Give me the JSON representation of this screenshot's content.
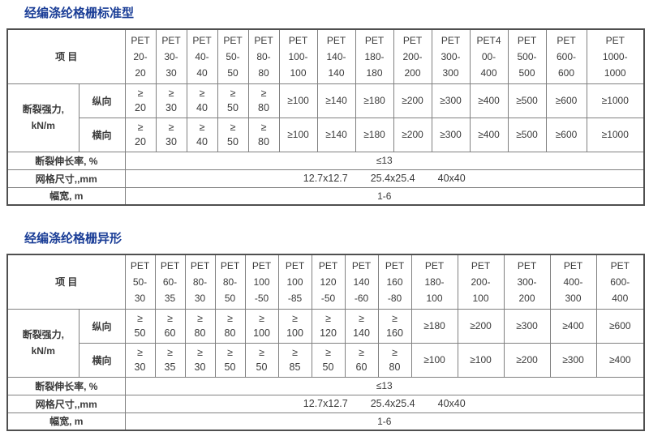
{
  "colors": {
    "title_blue": "#1b3e97",
    "header_gray": "#d2d2d2",
    "cell_white": "#ffffff",
    "border_inner": "#808080",
    "border_outer": "#4f4f4f",
    "text": "#3a3a3a"
  },
  "shared": {
    "item_header": "项 目",
    "strength_label": [
      "断裂强力,",
      "kN/m"
    ],
    "direction_rows": [
      "纵向",
      "横向"
    ],
    "footer_labels": [
      "断裂伸长率, %",
      "网格尺寸,,mm",
      "幅宽, m"
    ],
    "footer_values": [
      "≤13",
      [
        "12.7x12.7",
        "25.4x25.4",
        "40x40"
      ],
      "1-6"
    ]
  },
  "tables": [
    {
      "title": "经编涤纶格栅标准型",
      "columns": [
        [
          "PET",
          "20-",
          "20"
        ],
        [
          "PET",
          "30-",
          "30"
        ],
        [
          "PET",
          "40-",
          "40"
        ],
        [
          "PET",
          "50-",
          "50"
        ],
        [
          "PET",
          "80-",
          "80"
        ],
        [
          "PET",
          "100-",
          "100"
        ],
        [
          "PET",
          "140-",
          "140"
        ],
        [
          "PET",
          "180-",
          "180"
        ],
        [
          "PET",
          "200-",
          "200"
        ],
        [
          "PET",
          "300-",
          "300"
        ],
        [
          "PET4",
          "00-",
          "400"
        ],
        [
          "PET",
          "500-",
          "500"
        ],
        [
          "PET",
          "600-",
          "600"
        ],
        [
          "PET",
          "1000-",
          "1000"
        ]
      ],
      "rows": {
        "longitudinal": [
          [
            "≥",
            "20"
          ],
          [
            "≥",
            "30"
          ],
          [
            "≥",
            "40"
          ],
          [
            "≥",
            "50"
          ],
          [
            "≥",
            "80"
          ],
          [
            "≥100"
          ],
          [
            "≥140"
          ],
          [
            "≥180"
          ],
          [
            "≥200"
          ],
          [
            "≥300"
          ],
          [
            "≥400"
          ],
          [
            "≥500"
          ],
          [
            "≥600"
          ],
          [
            "≥1000"
          ]
        ],
        "transverse": [
          [
            "≥",
            "20"
          ],
          [
            "≥",
            "30"
          ],
          [
            "≥",
            "40"
          ],
          [
            "≥",
            "50"
          ],
          [
            "≥",
            "80"
          ],
          [
            "≥100"
          ],
          [
            "≥140"
          ],
          [
            "≥180"
          ],
          [
            "≥200"
          ],
          [
            "≥300"
          ],
          [
            "≥400"
          ],
          [
            "≥500"
          ],
          [
            "≥600"
          ],
          [
            "≥1000"
          ]
        ]
      }
    },
    {
      "title": "经编涤纶格栅异形",
      "columns": [
        [
          "PET",
          "50-",
          "30"
        ],
        [
          "PET",
          "60-",
          "35"
        ],
        [
          "PET",
          "80-",
          "30"
        ],
        [
          "PET",
          "80-",
          "50"
        ],
        [
          "PET",
          "100",
          "-50"
        ],
        [
          "PET",
          "100",
          "-85"
        ],
        [
          "PET",
          "120",
          "-50"
        ],
        [
          "PET",
          "140",
          "-60"
        ],
        [
          "PET",
          "160",
          "-80"
        ],
        [
          "PET",
          "180-",
          "100"
        ],
        [
          "PET",
          "200-",
          "100"
        ],
        [
          "PET",
          "300-",
          "200"
        ],
        [
          "PET",
          "400-",
          "300"
        ],
        [
          "PET",
          "600-",
          "400"
        ]
      ],
      "rows": {
        "longitudinal": [
          [
            "≥",
            "50"
          ],
          [
            "≥",
            "60"
          ],
          [
            "≥",
            "80"
          ],
          [
            "≥",
            "80"
          ],
          [
            "≥",
            "100"
          ],
          [
            "≥",
            "100"
          ],
          [
            "≥",
            "120"
          ],
          [
            "≥",
            "140"
          ],
          [
            "≥",
            "160"
          ],
          [
            "≥180"
          ],
          [
            "≥200"
          ],
          [
            "≥300"
          ],
          [
            "≥400"
          ],
          [
            "≥600"
          ]
        ],
        "transverse": [
          [
            "≥",
            "30"
          ],
          [
            "≥",
            "35"
          ],
          [
            "≥",
            "30"
          ],
          [
            "≥",
            "50"
          ],
          [
            "≥",
            "50"
          ],
          [
            "≥",
            "85"
          ],
          [
            "≥",
            "50"
          ],
          [
            "≥",
            "60"
          ],
          [
            "≥",
            "80"
          ],
          [
            "≥100"
          ],
          [
            "≥100"
          ],
          [
            "≥200"
          ],
          [
            "≥300"
          ],
          [
            "≥400"
          ]
        ]
      }
    }
  ]
}
